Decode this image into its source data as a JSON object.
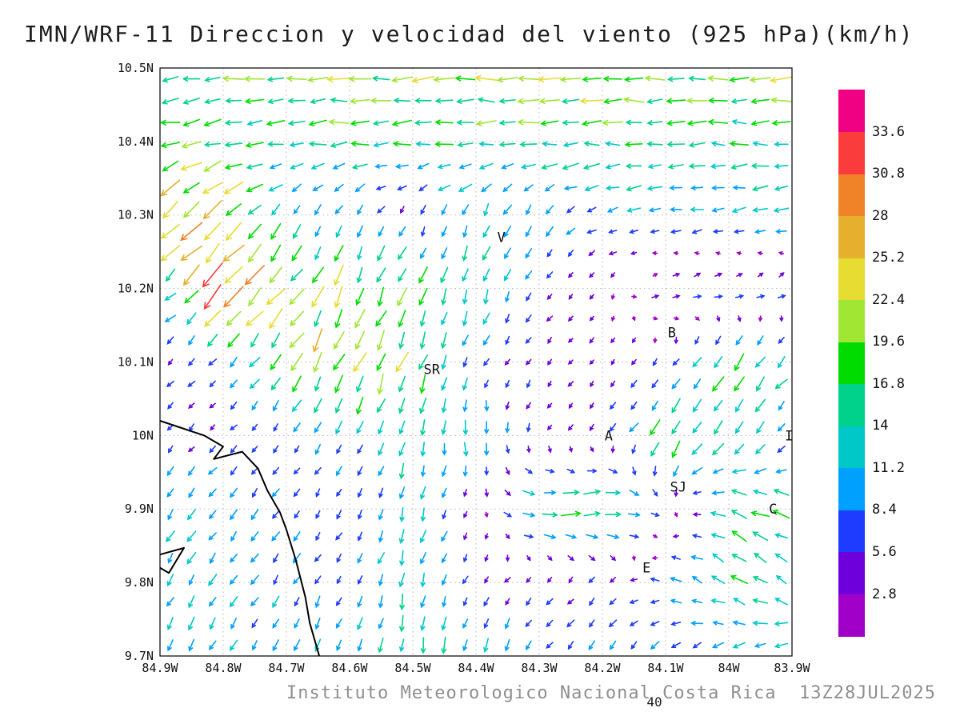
{
  "title": "IMN/WRF-11 Direccion y velocidad del viento (925 hPa)(km/h)",
  "footer": {
    "credit": "Instituto Meteorologico Nacional Costa Rica  13Z28JUL2025",
    "page_number": "40"
  },
  "chart_data": {
    "type": "quiver",
    "title": "IMN/WRF-11 Direccion y velocidad del viento (925 hPa)(km/h)",
    "model": "IMN/WRF-11",
    "variable": "Direccion y velocidad del viento",
    "level": "925 hPa",
    "units": "km/h",
    "valid_time": "13Z28JUL2025",
    "grid_on": true,
    "x_ticks": [
      "84.9W",
      "84.8W",
      "84.7W",
      "84.6W",
      "84.5W",
      "84.4W",
      "84.3W",
      "84.2W",
      "84.1W",
      "84W",
      "83.9W"
    ],
    "y_ticks": [
      "10.5N",
      "10.4N",
      "10.3N",
      "10.2N",
      "10.1N",
      "10N",
      "9.9N",
      "9.8N",
      "9.7N"
    ],
    "lon_w_range": [
      84.9,
      83.9
    ],
    "lat_n_range": [
      9.7,
      10.5
    ],
    "speed_levels_kmh": [
      2.8,
      5.6,
      8.4,
      11.2,
      14,
      16.8,
      19.6,
      22.4,
      25.2,
      28,
      30.8,
      33.6
    ],
    "speed_colors": [
      "#a000c8",
      "#6e00dc",
      "#1e3cff",
      "#00a0ff",
      "#00c8c8",
      "#00d28c",
      "#00dc00",
      "#a0e632",
      "#e6dc32",
      "#e6af2d",
      "#f08228",
      "#fa3c3c",
      "#f00082"
    ],
    "colorbar_position": "right",
    "wind_grid": {
      "lon_w": [
        84.9,
        84.8,
        84.7,
        84.6,
        84.5,
        84.4,
        84.3,
        84.2,
        84.1,
        84.0,
        83.9
      ],
      "lat_n": [
        10.5,
        10.4,
        10.3,
        10.2,
        10.1,
        10.0,
        9.9,
        9.8,
        9.7
      ],
      "u_kmh": [
        [
          -15,
          -18,
          -20,
          -21,
          -22,
          -22,
          -21,
          -21,
          -20,
          -20,
          -19
        ],
        [
          -16,
          -18,
          -14,
          -15,
          -15,
          -16,
          -17,
          -17,
          -16,
          -15,
          -15
        ],
        [
          -20,
          -16,
          -7,
          -4,
          -3,
          -5,
          -5,
          -9,
          -11,
          -12,
          -11
        ],
        [
          -10,
          -21,
          -14,
          -9,
          -6,
          -5,
          -3,
          -2,
          7,
          8,
          6
        ],
        [
          -4,
          -5,
          -9,
          -11,
          -7,
          -3,
          -3,
          -2,
          -3,
          -10,
          -9
        ],
        [
          -3,
          -4,
          -4,
          -4,
          -3,
          2,
          -2,
          -3,
          -11,
          -8,
          -4
        ],
        [
          -6,
          -7,
          -5,
          -3,
          -3,
          -2,
          15,
          21,
          5,
          -16,
          -14
        ],
        [
          -6,
          -6,
          -5,
          -4,
          -3,
          -3,
          -4,
          -4,
          -8,
          -14,
          -11
        ],
        [
          -6,
          -5,
          -4,
          -3,
          -2,
          -3,
          -5,
          -6,
          -6,
          -9,
          -11
        ]
      ],
      "v_kmh": [
        [
          -2,
          -2,
          -1,
          0,
          0,
          0,
          0,
          0,
          0,
          0,
          0
        ],
        [
          -4,
          -4,
          -2,
          -1,
          -1,
          -1,
          0,
          0,
          0,
          0,
          0
        ],
        [
          -20,
          -16,
          -8,
          -7,
          -5,
          -12,
          -9,
          -3,
          -2,
          -2,
          -2
        ],
        [
          -8,
          -25,
          -18,
          -19,
          -16,
          -14,
          -4,
          -3,
          3,
          2,
          3
        ],
        [
          -4,
          -5,
          -14,
          -22,
          -19,
          -6,
          -3,
          -3,
          -4,
          -14,
          -9
        ],
        [
          -4,
          -4,
          -5,
          -9,
          -13,
          -12,
          -4,
          -4,
          -15,
          -12,
          -6
        ],
        [
          -9,
          -8,
          -7,
          -5,
          -12,
          -3,
          -2,
          2,
          -4,
          6,
          5
        ],
        [
          -10,
          -9,
          -8,
          -6,
          -13,
          -4,
          -3,
          -5,
          2,
          9,
          7
        ],
        [
          -11,
          -9,
          -9,
          -11,
          -15,
          -13,
          -7,
          -8,
          -6,
          -5,
          -4
        ]
      ]
    },
    "stations": [
      {
        "label": "V",
        "lon_w": 84.36,
        "lat_n": 10.27
      },
      {
        "label": "B",
        "lon_w": 84.09,
        "lat_n": 10.14
      },
      {
        "label": "SR",
        "lon_w": 84.47,
        "lat_n": 10.09
      },
      {
        "label": "A",
        "lon_w": 84.19,
        "lat_n": 10.0
      },
      {
        "label": "SJ",
        "lon_w": 84.08,
        "lat_n": 9.93
      },
      {
        "label": "C",
        "lon_w": 83.93,
        "lat_n": 9.9
      },
      {
        "label": "E",
        "lon_w": 84.13,
        "lat_n": 9.82
      },
      {
        "label": "I",
        "lon_w": 83.905,
        "lat_n": 10.0
      }
    ],
    "coastline": [
      [
        [
          84.9,
          10.02
        ],
        [
          84.83,
          10.0
        ],
        [
          84.8,
          9.985
        ],
        [
          84.815,
          9.968
        ],
        [
          84.77,
          9.978
        ],
        [
          84.745,
          9.955
        ],
        [
          84.73,
          9.925
        ],
        [
          84.71,
          9.895
        ],
        [
          84.7,
          9.872
        ],
        [
          84.685,
          9.83
        ],
        [
          84.67,
          9.78
        ],
        [
          84.663,
          9.745
        ],
        [
          84.648,
          9.7
        ]
      ],
      [
        [
          84.9,
          9.838
        ],
        [
          84.862,
          9.847
        ],
        [
          84.886,
          9.813
        ],
        [
          84.9,
          9.82
        ]
      ]
    ]
  }
}
